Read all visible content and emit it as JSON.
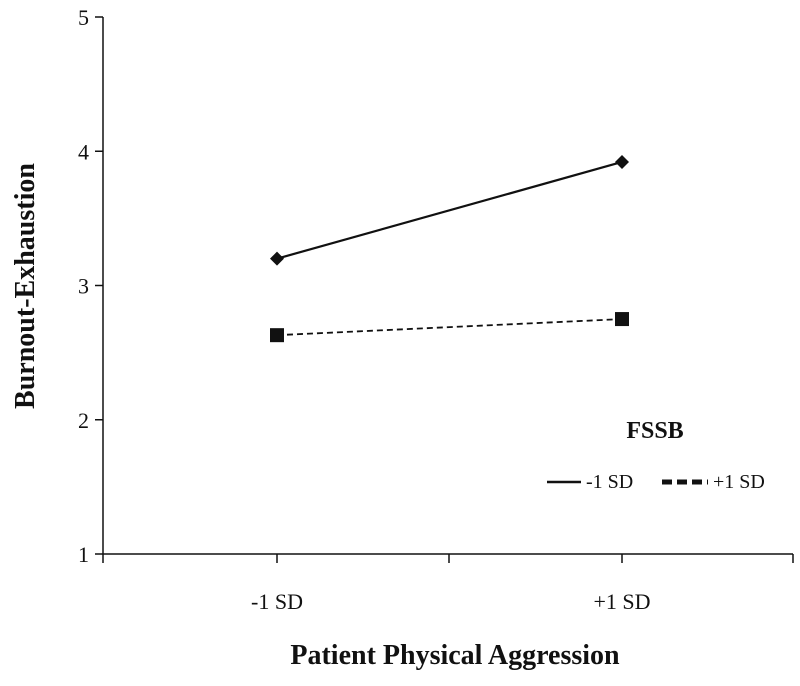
{
  "chart_data": {
    "type": "line",
    "title": "",
    "xlabel": "Patient Physical Aggression",
    "ylabel": "Burnout-Exhaustion",
    "categories": [
      "-1 SD",
      "+1 SD"
    ],
    "ylim": [
      1,
      5
    ],
    "yticks": [
      "1",
      "2",
      "3",
      "4",
      "5"
    ],
    "grid": false,
    "legend": {
      "title": "FSSB",
      "placement": "bottom-right"
    },
    "series": [
      {
        "name": "-1 SD",
        "values": [
          3.2,
          3.92
        ],
        "line_style": "solid",
        "marker": "diamond",
        "color": "#111111"
      },
      {
        "name": "+1 SD",
        "values": [
          2.63,
          2.75
        ],
        "line_style": "dashed",
        "marker": "square",
        "color": "#111111"
      }
    ]
  }
}
